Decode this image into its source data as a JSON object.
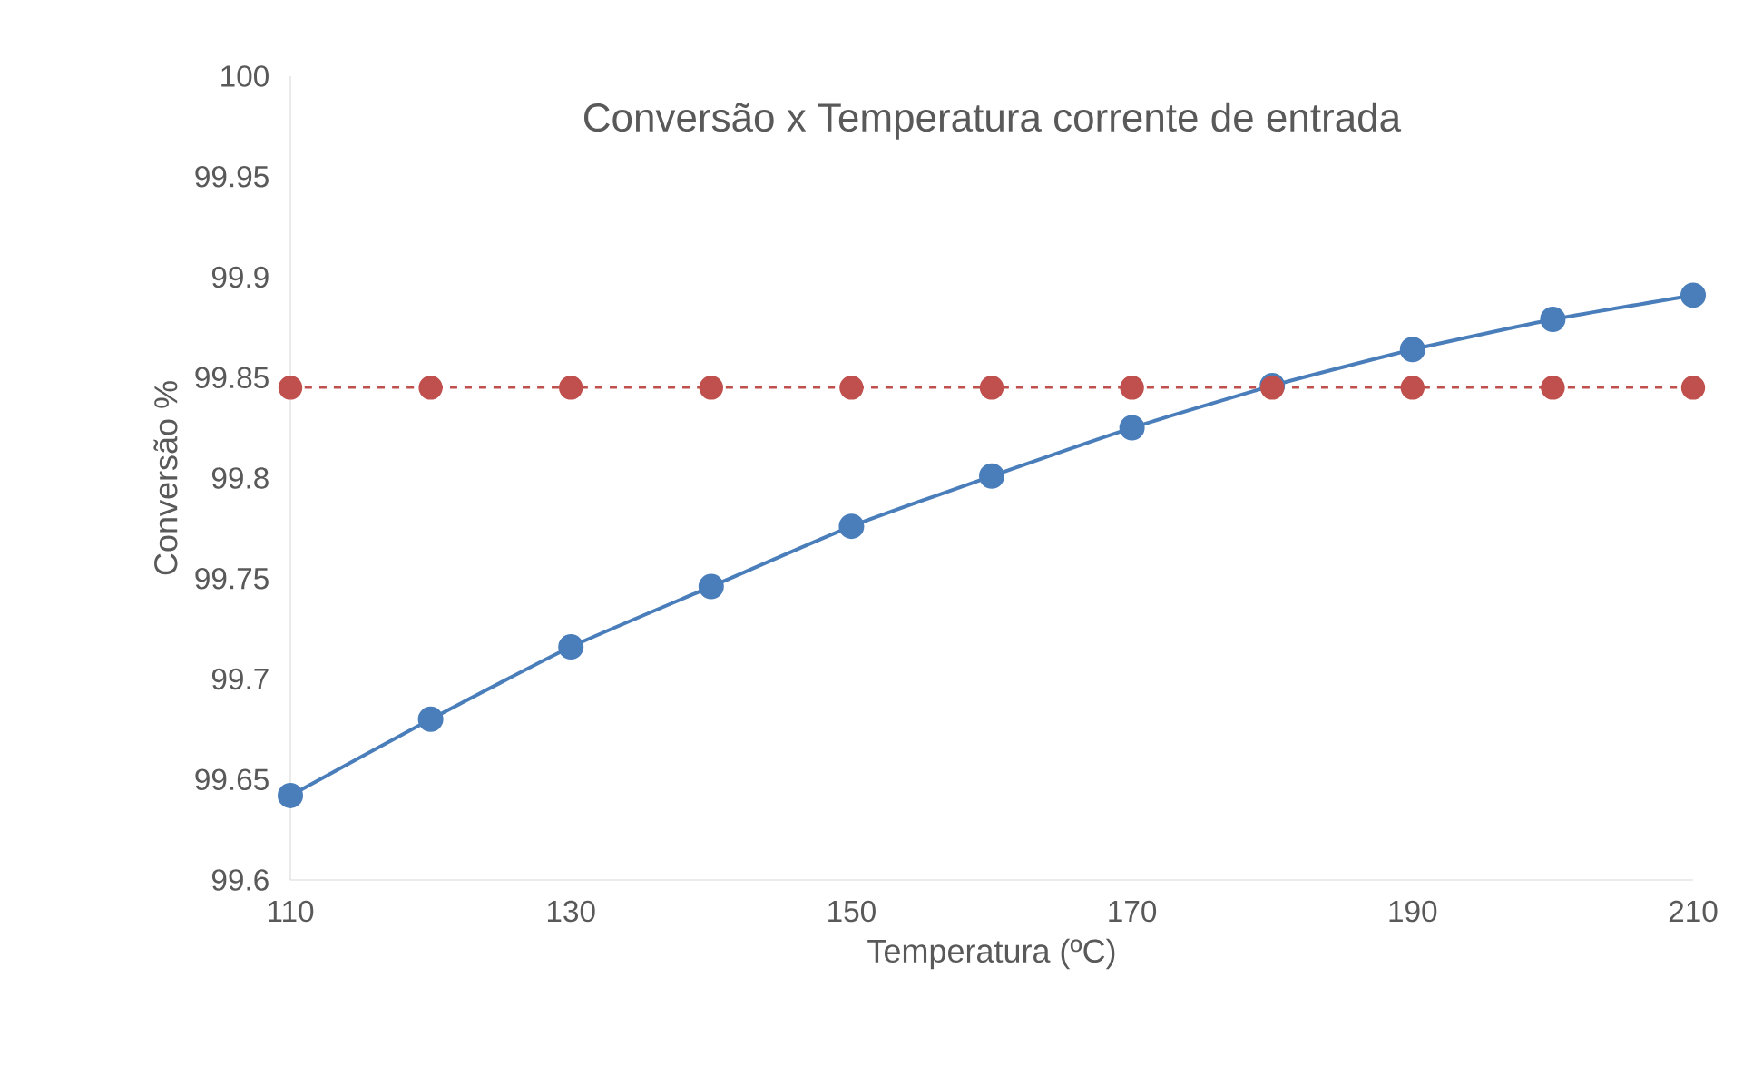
{
  "chart_data": {
    "type": "line",
    "title": "Conversão x Temperatura corrente de entrada",
    "xlabel": "Temperatura (ºC)",
    "ylabel": "Conversão %",
    "x": [
      110,
      120,
      130,
      140,
      150,
      160,
      170,
      180,
      190,
      200,
      210
    ],
    "series": [
      {
        "color": "#4a7ebb",
        "line_style": "solid",
        "values": [
          99.642,
          99.68,
          99.716,
          99.746,
          99.776,
          99.801,
          99.825,
          99.846,
          99.864,
          99.879,
          99.891
        ]
      },
      {
        "color": "#c0504d",
        "line_style": "dashed",
        "values": [
          99.845,
          99.845,
          99.845,
          99.845,
          99.845,
          99.845,
          99.845,
          99.845,
          99.845,
          99.845,
          99.845
        ]
      }
    ],
    "xlim": [
      110,
      210
    ],
    "ylim": [
      99.6,
      100
    ],
    "xticks": [
      110,
      130,
      150,
      170,
      190,
      210
    ],
    "yticks": [
      99.6,
      99.65,
      99.7,
      99.75,
      99.8,
      99.85,
      99.9,
      99.95,
      100
    ],
    "marker": "circle"
  }
}
